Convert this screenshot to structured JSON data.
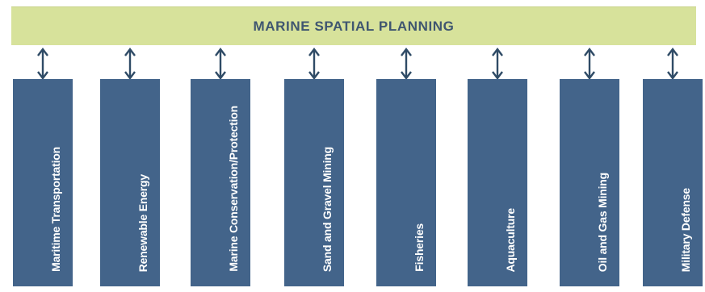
{
  "header": {
    "title": "MARINE SPATIAL PLANNING"
  },
  "sectors": [
    "Maritime Transportation",
    "Renewable Energy",
    "Marine Conservation/Protection",
    "Sand and Gravel Mining",
    "Fisheries",
    "Aquaculture",
    "Oil and Gas Mining",
    "Military Defense"
  ],
  "colors": {
    "header_background": "#d7e29b",
    "header_text": "#3f5670",
    "column_background": "#43648a",
    "column_text": "#ffffff",
    "arrow": "#2f4b66"
  }
}
